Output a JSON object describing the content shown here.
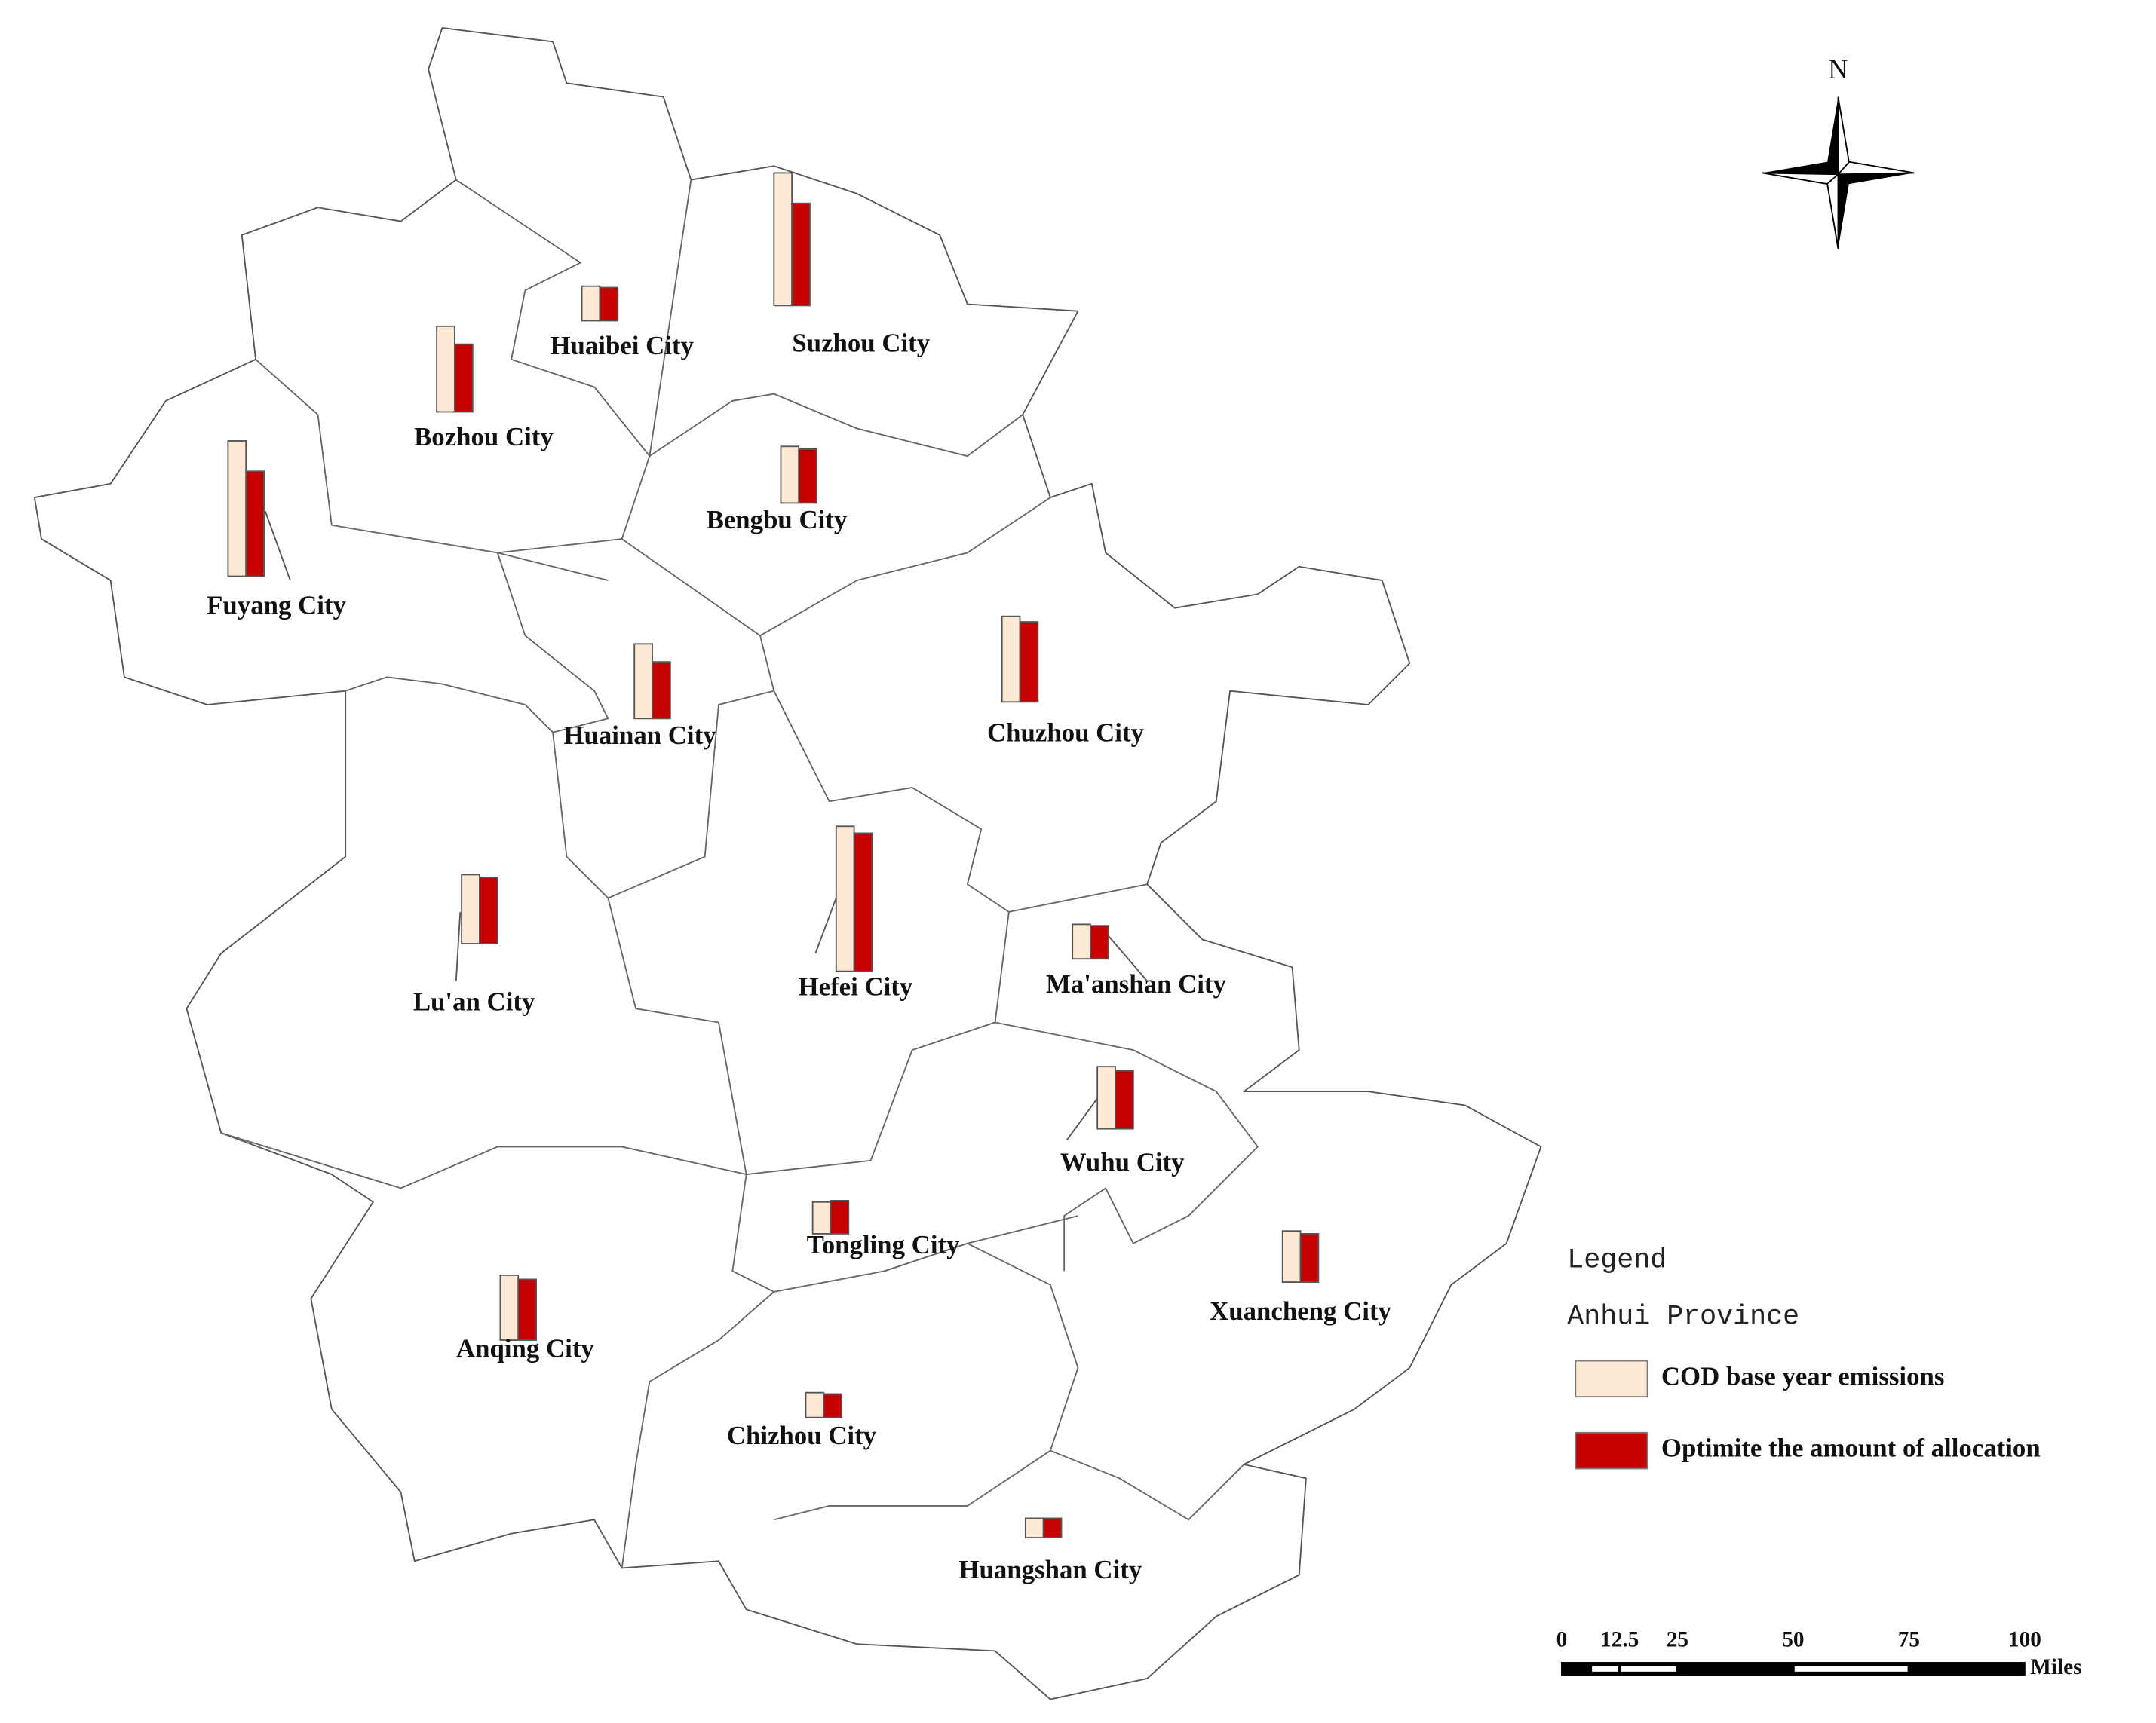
{
  "north": "N",
  "legend": {
    "title": "Legend",
    "layer": "Anhui Province",
    "items": [
      {
        "label": "COD base year emissions",
        "color": "#fde9d4"
      },
      {
        "label": "Optimite the amount of allocation",
        "color": "#c40000"
      }
    ]
  },
  "cities": [
    {
      "name": "Huaibei City",
      "values": [
        25,
        24
      ]
    },
    {
      "name": "Suzhou City",
      "values": [
        96,
        74
      ]
    },
    {
      "name": "Bozhou City",
      "values": [
        62,
        49
      ]
    },
    {
      "name": "Fuyang City",
      "values": [
        98,
        76
      ]
    },
    {
      "name": "Bengbu City",
      "values": [
        41,
        39
      ]
    },
    {
      "name": "Huainan City",
      "values": [
        54,
        41
      ]
    },
    {
      "name": "Chuzhou City",
      "values": [
        62,
        58
      ]
    },
    {
      "name": "Lu'an City",
      "values": [
        50,
        48
      ]
    },
    {
      "name": "Hefei City",
      "values": [
        105,
        100
      ]
    },
    {
      "name": "Ma'anshan City",
      "values": [
        25,
        24
      ]
    },
    {
      "name": "Wuhu City",
      "values": [
        45,
        42
      ]
    },
    {
      "name": "Tongling City",
      "values": [
        23,
        24
      ]
    },
    {
      "name": "Xuancheng City",
      "values": [
        37,
        35
      ]
    },
    {
      "name": "Anqing City",
      "values": [
        47,
        44
      ]
    },
    {
      "name": "Chizhou City",
      "values": [
        18,
        17
      ]
    },
    {
      "name": "Huangshan City",
      "values": [
        14,
        14
      ]
    }
  ],
  "scale_bar": {
    "ticks": [
      0,
      12.5,
      25,
      50,
      75,
      100
    ],
    "unit": "Miles"
  }
}
